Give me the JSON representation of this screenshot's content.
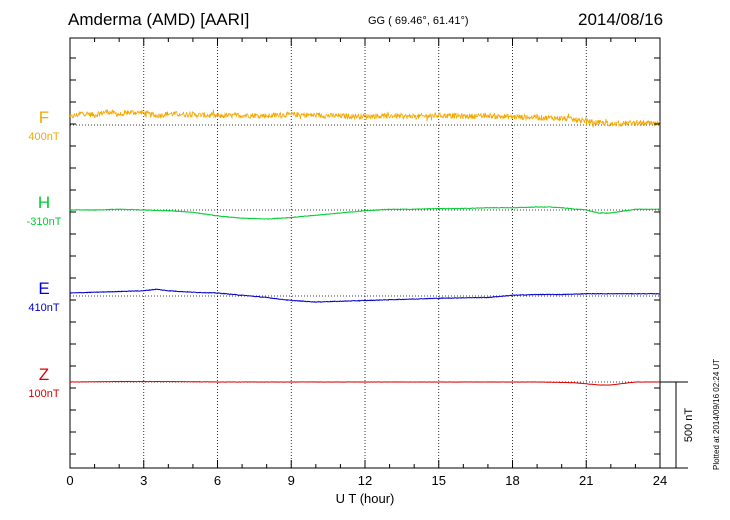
{
  "header": {
    "station": "Amderma (AMD)  [AARI]",
    "coords": "GG ( 69.46°,  61.41°)",
    "date": "2014/08/16"
  },
  "footer": {
    "plot_stamp": "Plotted at 2014/09/16 02:24 UT"
  },
  "chart_data": {
    "type": "line",
    "xlabel": "U T (hour)",
    "xlim": [
      0,
      24
    ],
    "xticks": [
      "0",
      "3",
      "6",
      "9",
      "12",
      "15",
      "18",
      "21",
      "24"
    ],
    "scale_bar_label": "500 nT",
    "scale_bar_nT": 500,
    "series": [
      {
        "name": "F",
        "baseline_label": "400nT",
        "color": "#f5a800",
        "noise": 18,
        "x": [
          0,
          0.5,
          1,
          1.5,
          2,
          2.5,
          3,
          3.5,
          4,
          5,
          6,
          7,
          8,
          9,
          10,
          11,
          12,
          13,
          14,
          15,
          16,
          17,
          18,
          19,
          20,
          20.5,
          21,
          21.5,
          22,
          22.5,
          23,
          23.5,
          24
        ],
        "y": [
          50,
          80,
          65,
          90,
          70,
          85,
          80,
          60,
          75,
          70,
          60,
          65,
          62,
          70,
          65,
          60,
          58,
          62,
          55,
          65,
          58,
          60,
          55,
          50,
          45,
          35,
          25,
          15,
          5,
          10,
          15,
          10,
          5
        ]
      },
      {
        "name": "H",
        "baseline_label": "-310nT",
        "color": "#00cc33",
        "noise": 2,
        "x": [
          0,
          1,
          2,
          3,
          4,
          5,
          6,
          7,
          8,
          9,
          10,
          11,
          12,
          13,
          14,
          15,
          16,
          17,
          18,
          19,
          19.5,
          20,
          21,
          21.5,
          22,
          23,
          24
        ],
        "y": [
          0,
          0,
          5,
          0,
          -5,
          -15,
          -40,
          -55,
          -60,
          -50,
          -35,
          -20,
          -5,
          5,
          5,
          10,
          10,
          15,
          15,
          20,
          20,
          15,
          0,
          -20,
          -20,
          5,
          5
        ]
      },
      {
        "name": "E",
        "baseline_label": "410nT",
        "color": "#0000cc",
        "noise": 2,
        "x": [
          0,
          1,
          2,
          3,
          3.5,
          4,
          5,
          6,
          7,
          8,
          9,
          10,
          11,
          12,
          13,
          14,
          15,
          16,
          17,
          18,
          19,
          20,
          21,
          22,
          23,
          24
        ],
        "y": [
          20,
          25,
          30,
          35,
          45,
          35,
          25,
          20,
          5,
          -10,
          -30,
          -40,
          -35,
          -30,
          -25,
          -20,
          -15,
          -12,
          -10,
          5,
          10,
          10,
          15,
          15,
          15,
          15
        ]
      },
      {
        "name": "Z",
        "baseline_label": "100nT",
        "color": "#dd0000",
        "noise": 1,
        "x": [
          0,
          2,
          4,
          6,
          8,
          10,
          12,
          14,
          16,
          18,
          19,
          20,
          20.5,
          21,
          21.5,
          22,
          22.5,
          23,
          24
        ],
        "y": [
          0,
          3,
          3,
          0,
          0,
          0,
          0,
          0,
          0,
          0,
          0,
          -3,
          -5,
          -12,
          -20,
          -20,
          -10,
          0,
          0
        ]
      }
    ]
  }
}
